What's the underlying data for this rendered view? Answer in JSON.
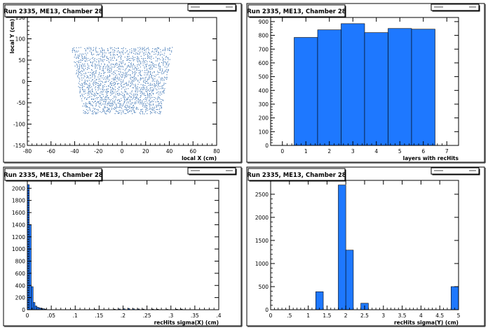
{
  "chart_data": [
    {
      "type": "scatter",
      "title": "Run 2335, ME13, Chamber 28",
      "xlabel": "local X (cm)",
      "ylabel": "local Y (cm)",
      "xlim": [
        -80,
        80
      ],
      "ylim": [
        -150,
        150
      ],
      "xticks": [
        -80,
        -60,
        -40,
        -20,
        0,
        20,
        40,
        60,
        80
      ],
      "yticks": [
        -150,
        -100,
        -50,
        0,
        50,
        100,
        150
      ],
      "point_color": "#1f5fa8",
      "region": {
        "y_range": [
          -75,
          80
        ],
        "x_halfwidth_top": 43,
        "x_halfwidth_bottom": 33
      }
    },
    {
      "type": "bar",
      "title": "Run 2335, ME13, Chamber 28",
      "xlabel": "layers with recHits",
      "ylabel": "",
      "xlim": [
        -0.5,
        7.5
      ],
      "ylim": [
        0,
        930
      ],
      "xticks": [
        0,
        1,
        2,
        3,
        4,
        5,
        6,
        7
      ],
      "yticks": [
        0,
        100,
        200,
        300,
        400,
        500,
        600,
        700,
        800,
        900
      ],
      "bins": [
        {
          "x0": 0.5,
          "x1": 1.5,
          "value": 785
        },
        {
          "x0": 1.5,
          "x1": 2.5,
          "value": 840
        },
        {
          "x0": 2.5,
          "x1": 3.5,
          "value": 885
        },
        {
          "x0": 3.5,
          "x1": 4.5,
          "value": 820
        },
        {
          "x0": 4.5,
          "x1": 5.5,
          "value": 850
        },
        {
          "x0": 5.5,
          "x1": 6.5,
          "value": 845
        }
      ]
    },
    {
      "type": "bar",
      "title": "Run 2335, ME13, Chamber 28",
      "xlabel": "recHits sigma(X) (cm)",
      "ylabel": "",
      "xlim": [
        0,
        0.4
      ],
      "ylim": [
        0,
        2130
      ],
      "xticks": [
        0,
        0.05,
        0.1,
        0.15,
        0.2,
        0.25,
        0.3,
        0.35,
        0.4
      ],
      "yticks": [
        0,
        200,
        400,
        600,
        800,
        1000,
        1200,
        1400,
        1600,
        1800,
        2000
      ],
      "bins": [
        {
          "x0": 0.0,
          "x1": 0.004,
          "value": 2060
        },
        {
          "x0": 0.004,
          "x1": 0.008,
          "value": 1400
        },
        {
          "x0": 0.008,
          "x1": 0.012,
          "value": 380
        },
        {
          "x0": 0.012,
          "x1": 0.016,
          "value": 120
        },
        {
          "x0": 0.016,
          "x1": 0.02,
          "value": 60
        },
        {
          "x0": 0.02,
          "x1": 0.024,
          "value": 40
        },
        {
          "x0": 0.024,
          "x1": 0.028,
          "value": 30
        },
        {
          "x0": 0.028,
          "x1": 0.032,
          "value": 20
        },
        {
          "x0": 0.032,
          "x1": 0.036,
          "value": 15
        },
        {
          "x0": 0.036,
          "x1": 0.04,
          "value": 10
        },
        {
          "x0": 0.14,
          "x1": 0.144,
          "value": 6
        },
        {
          "x0": 0.18,
          "x1": 0.184,
          "value": 8
        },
        {
          "x0": 0.19,
          "x1": 0.194,
          "value": 12
        },
        {
          "x0": 0.2,
          "x1": 0.204,
          "value": 15
        },
        {
          "x0": 0.21,
          "x1": 0.214,
          "value": 18
        },
        {
          "x0": 0.22,
          "x1": 0.224,
          "value": 14
        },
        {
          "x0": 0.23,
          "x1": 0.234,
          "value": 12
        },
        {
          "x0": 0.24,
          "x1": 0.244,
          "value": 10
        },
        {
          "x0": 0.26,
          "x1": 0.264,
          "value": 10
        },
        {
          "x0": 0.27,
          "x1": 0.274,
          "value": 8
        },
        {
          "x0": 0.29,
          "x1": 0.294,
          "value": 6
        },
        {
          "x0": 0.31,
          "x1": 0.314,
          "value": 8
        },
        {
          "x0": 0.32,
          "x1": 0.324,
          "value": 10
        }
      ]
    },
    {
      "type": "bar",
      "title": "Run 2335, ME13, Chamber 28",
      "xlabel": "recHits sigma(Y) (cm)",
      "ylabel": "",
      "xlim": [
        0,
        5
      ],
      "ylim": [
        0,
        2800
      ],
      "xticks": [
        0,
        0.5,
        1,
        1.5,
        2,
        2.5,
        3,
        3.5,
        4,
        4.5,
        5
      ],
      "yticks": [
        0,
        500,
        1000,
        1500,
        2000,
        2500
      ],
      "bins": [
        {
          "x0": 1.2,
          "x1": 1.4,
          "value": 390
        },
        {
          "x0": 1.8,
          "x1": 2.0,
          "value": 2700
        },
        {
          "x0": 2.0,
          "x1": 2.2,
          "value": 1290
        },
        {
          "x0": 2.4,
          "x1": 2.6,
          "value": 140
        },
        {
          "x0": 4.8,
          "x1": 5.0,
          "value": 500
        }
      ]
    }
  ]
}
